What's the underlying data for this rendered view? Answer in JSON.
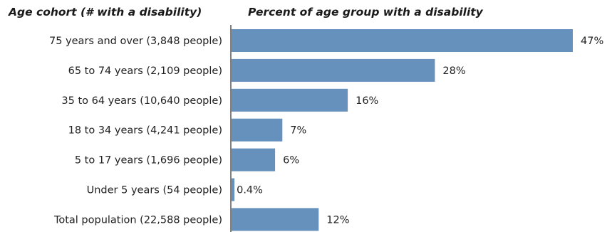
{
  "chart_data": {
    "type": "bar",
    "orientation": "horizontal",
    "category_header": "Age cohort  (# with a disability)",
    "value_header": "Percent of age group with a disability",
    "categories": [
      "75 years and over (3,848 people)",
      "65 to 74 years (2,109 people)",
      "35 to 64 years (10,640 people)",
      "18 to 34 years (4,241 people)",
      "5 to 17 years (1,696 people)",
      "Under 5 years (54 people)",
      "Total population (22,588 people)"
    ],
    "values": [
      47,
      28,
      16,
      7,
      6,
      0.4,
      12
    ],
    "value_labels": [
      "47%",
      "28%",
      "16%",
      "7%",
      "6%",
      "0.4%",
      "12%"
    ],
    "unit": "%",
    "xlim": [
      0,
      50
    ],
    "grid": false,
    "legend": "none",
    "colors": {
      "bar": "#6691bd",
      "axis": "#000000"
    }
  }
}
